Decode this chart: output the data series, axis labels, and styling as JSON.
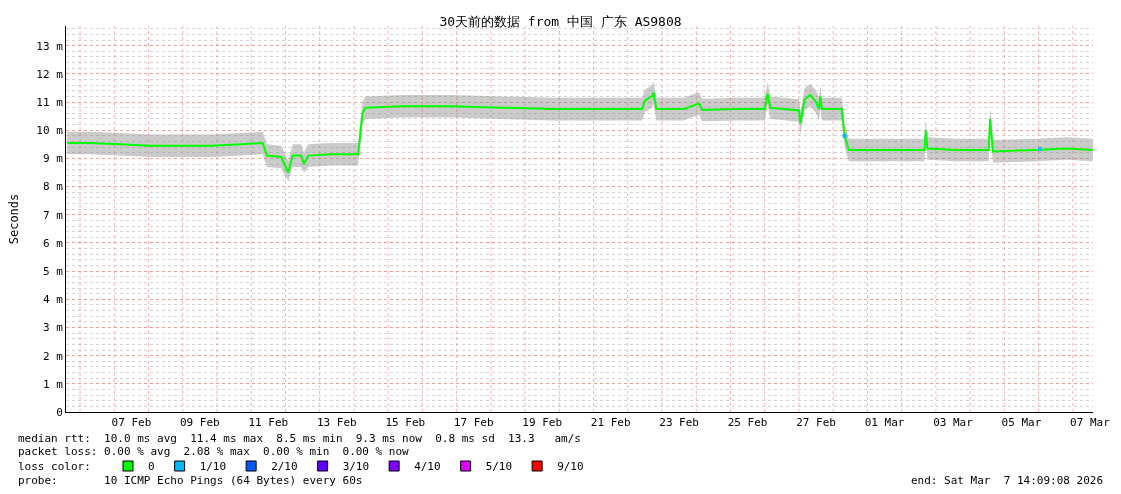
{
  "chart_data": {
    "type": "line",
    "title": "30天前的数据 from 中国 广东 AS9808",
    "ylabel": "Seconds",
    "xlim": [
      "2026-02-05T14:09",
      "2026-03-07T14:09"
    ],
    "xticks": [
      {
        "value": "2026-02-07T12:00",
        "label": "07 Feb"
      },
      {
        "value": "2026-02-09T12:00",
        "label": "09 Feb"
      },
      {
        "value": "2026-02-11T12:00",
        "label": "11 Feb"
      },
      {
        "value": "2026-02-13T12:00",
        "label": "13 Feb"
      },
      {
        "value": "2026-02-15T12:00",
        "label": "15 Feb"
      },
      {
        "value": "2026-02-17T12:00",
        "label": "17 Feb"
      },
      {
        "value": "2026-02-19T12:00",
        "label": "19 Feb"
      },
      {
        "value": "2026-02-21T12:00",
        "label": "21 Feb"
      },
      {
        "value": "2026-02-23T12:00",
        "label": "23 Feb"
      },
      {
        "value": "2026-02-25T12:00",
        "label": "25 Feb"
      },
      {
        "value": "2026-02-27T12:00",
        "label": "27 Feb"
      },
      {
        "value": "2026-03-01T12:00",
        "label": "01 Mar"
      },
      {
        "value": "2026-03-03T12:00",
        "label": "03 Mar"
      },
      {
        "value": "2026-03-05T12:00",
        "label": "05 Mar"
      },
      {
        "value": "2026-03-07T12:00",
        "label": "07 Mar"
      },
      {
        "value": "2026-02-06",
        "label": null
      },
      {
        "value": "2026-02-07",
        "label": null
      },
      {
        "value": "2026-02-08",
        "label": null
      },
      {
        "value": "2026-02-09",
        "label": null
      },
      {
        "value": "2026-02-10",
        "label": null
      },
      {
        "value": "2026-02-11",
        "label": null
      },
      {
        "value": "2026-02-12",
        "label": null
      },
      {
        "value": "2026-02-13",
        "label": null
      },
      {
        "value": "2026-02-14",
        "label": null
      },
      {
        "value": "2026-02-15",
        "label": null
      },
      {
        "value": "2026-02-16",
        "label": null
      },
      {
        "value": "2026-02-17",
        "label": null
      },
      {
        "value": "2026-02-18",
        "label": null
      },
      {
        "value": "2026-02-19",
        "label": null
      },
      {
        "value": "2026-02-20",
        "label": null
      },
      {
        "value": "2026-02-21",
        "label": null
      },
      {
        "value": "2026-02-22",
        "label": null
      },
      {
        "value": "2026-02-23",
        "label": null
      },
      {
        "value": "2026-02-24",
        "label": null
      },
      {
        "value": "2026-02-25",
        "label": null
      },
      {
        "value": "2026-02-26",
        "label": null
      },
      {
        "value": "2026-02-27",
        "label": null
      },
      {
        "value": "2026-02-28",
        "label": null
      },
      {
        "value": "2026-03-01",
        "label": null
      },
      {
        "value": "2026-03-02",
        "label": null
      },
      {
        "value": "2026-03-03",
        "label": null
      },
      {
        "value": "2026-03-04",
        "label": null
      },
      {
        "value": "2026-03-05",
        "label": null
      },
      {
        "value": "2026-03-06",
        "label": null
      },
      {
        "value": "2026-03-07",
        "label": null
      }
    ],
    "ylim": [
      0,
      13.7
    ],
    "yticks": [
      0,
      {
        "value": 1,
        "label": "1 m"
      },
      {
        "value": 2,
        "label": "2 m"
      },
      {
        "value": 3,
        "label": "3 m"
      },
      {
        "value": 4,
        "label": "4 m"
      },
      {
        "value": 5,
        "label": "5 m"
      },
      {
        "value": 6,
        "label": "6 m"
      },
      {
        "value": 7,
        "label": "7 m"
      },
      {
        "value": 8,
        "label": "8 m"
      },
      {
        "value": 9,
        "label": "9 m"
      },
      {
        "value": 10,
        "label": "10 m"
      },
      {
        "value": 11,
        "label": "11 m"
      },
      {
        "value": 12,
        "label": "12 m"
      },
      {
        "value": 13,
        "label": "13 m"
      }
    ],
    "grid": true,
    "legend": "bottom",
    "marker": "none",
    "line_style": "solid",
    "series": [
      {
        "name": "0",
        "color": "#00ff00",
        "x": [
          "2026-02-05T15:00",
          "2026-02-06T07:00",
          "2026-02-07T04:00",
          "2026-02-08T01:00",
          "2026-02-08T22:00",
          "2026-02-09T20:00",
          "2026-02-10T17:00",
          "2026-02-11T08:00",
          "2026-02-11T11:00",
          "2026-02-11T21:00",
          "2026-02-12T02:00",
          "2026-02-12T05:00",
          "2026-02-12T11:00",
          "2026-02-12T13:00",
          "2026-02-12T16:00",
          "2026-02-13T08:00",
          "2026-02-14T03:00",
          "2026-02-14T06:00",
          "2026-02-14T08:00",
          "2026-02-15T10:00",
          "2026-02-16T21:00",
          "2026-02-18T08:00",
          "2026-02-19T20:00",
          "2026-02-21T07:00",
          "2026-02-22T10:00",
          "2026-02-22T12:00",
          "2026-02-22T17:00",
          "2026-02-22T18:00",
          "2026-02-22T20:00",
          "2026-02-23T15:00",
          "2026-02-24T02:00",
          "2026-02-24T04:00",
          "2026-02-25T03:00",
          "2026-02-26T00:00",
          "2026-02-26T02:00",
          "2026-02-26T04:00",
          "2026-02-27T00:00",
          "2026-02-27T01:00",
          "2026-02-27T04:00",
          "2026-02-27T08:00",
          "2026-02-27T12:00",
          "2026-02-27T14:00",
          "2026-02-27T15:00",
          "2026-02-27T16:00",
          "2026-02-28T06:00",
          "2026-02-28T08:00",
          "2026-02-28T11:00",
          "2026-03-01T13:00",
          "2026-03-02T16:00",
          "2026-03-02T17:00",
          "2026-03-02T18:00",
          "2026-03-03T14:00",
          "2026-03-04T13:00",
          "2026-03-04T14:00",
          "2026-03-04T16:00",
          "2026-03-05T22:00",
          "2026-03-06T20:00",
          "2026-03-07T14:00"
        ],
        "values": [
          9.55,
          9.55,
          9.5,
          9.45,
          9.45,
          9.45,
          9.5,
          9.55,
          9.1,
          9.05,
          8.5,
          9.1,
          9.1,
          8.8,
          9.1,
          9.15,
          9.15,
          10.6,
          10.8,
          10.85,
          10.85,
          10.8,
          10.75,
          10.75,
          10.75,
          11.05,
          11.2,
          11.35,
          10.75,
          10.75,
          10.95,
          10.72,
          10.75,
          10.75,
          11.3,
          10.8,
          10.7,
          10.25,
          11.1,
          11.25,
          11.0,
          10.75,
          11.2,
          10.75,
          10.75,
          9.8,
          9.3,
          9.3,
          9.3,
          10.0,
          9.35,
          9.3,
          9.3,
          10.4,
          9.25,
          9.3,
          9.35,
          9.3
        ],
        "lower": [
          9.15,
          9.15,
          9.1,
          9.05,
          9.05,
          9.05,
          9.1,
          9.15,
          8.7,
          8.65,
          8.2,
          8.7,
          8.7,
          8.5,
          8.7,
          8.75,
          8.75,
          10.2,
          10.4,
          10.45,
          10.45,
          10.4,
          10.35,
          10.35,
          10.35,
          10.65,
          10.8,
          10.95,
          10.35,
          10.35,
          10.55,
          10.32,
          10.35,
          10.35,
          10.9,
          10.4,
          10.3,
          9.85,
          10.7,
          10.85,
          10.6,
          10.35,
          10.8,
          10.35,
          10.35,
          9.4,
          8.9,
          8.9,
          8.9,
          9.6,
          8.95,
          8.9,
          8.9,
          10.0,
          8.85,
          8.9,
          8.95,
          8.9
        ],
        "upper": [
          9.95,
          9.95,
          9.9,
          9.85,
          9.85,
          9.85,
          9.9,
          9.95,
          9.5,
          9.45,
          8.9,
          9.5,
          9.5,
          9.2,
          9.5,
          9.55,
          9.55,
          11.0,
          11.2,
          11.25,
          11.25,
          11.2,
          11.15,
          11.15,
          11.15,
          11.45,
          11.6,
          11.75,
          11.15,
          11.15,
          11.35,
          11.12,
          11.15,
          11.15,
          11.7,
          11.2,
          11.1,
          10.65,
          11.5,
          11.65,
          11.4,
          11.15,
          11.6,
          11.15,
          11.15,
          10.2,
          9.7,
          9.7,
          9.7,
          10.4,
          9.75,
          9.7,
          9.7,
          10.8,
          9.65,
          9.7,
          9.75,
          9.7
        ]
      },
      {
        "name": "1/10",
        "color": "#00b8ff",
        "type": "scatter",
        "marker": "square",
        "x": [
          "2026-02-28T08:00",
          "2026-03-06T01:00"
        ],
        "values": [
          9.8,
          9.33
        ]
      },
      {
        "name": "2/10",
        "color": "#0059ff"
      },
      {
        "name": "3/10",
        "color": "#5e00ff"
      },
      {
        "name": "4/10",
        "color": "#7e00ff"
      },
      {
        "name": "5/10",
        "color": "#dd00ff"
      },
      {
        "name": "9/10",
        "color": "#ff0000"
      }
    ],
    "annotations": [
      "median rtt:  10.0 ms avg  11.4 ms max  8.5 ms min  9.3 ms now  0.8 ms sd  13.3   am/s",
      "packet loss: 0.00 % avg  2.08 % max  0.00 % min  0.00 % now",
      "loss color:",
      "probe:       10 ICMP Echo Pings (64 Bytes) every 60s",
      "end: Sat Mar  7 14:09:08 2026"
    ]
  }
}
